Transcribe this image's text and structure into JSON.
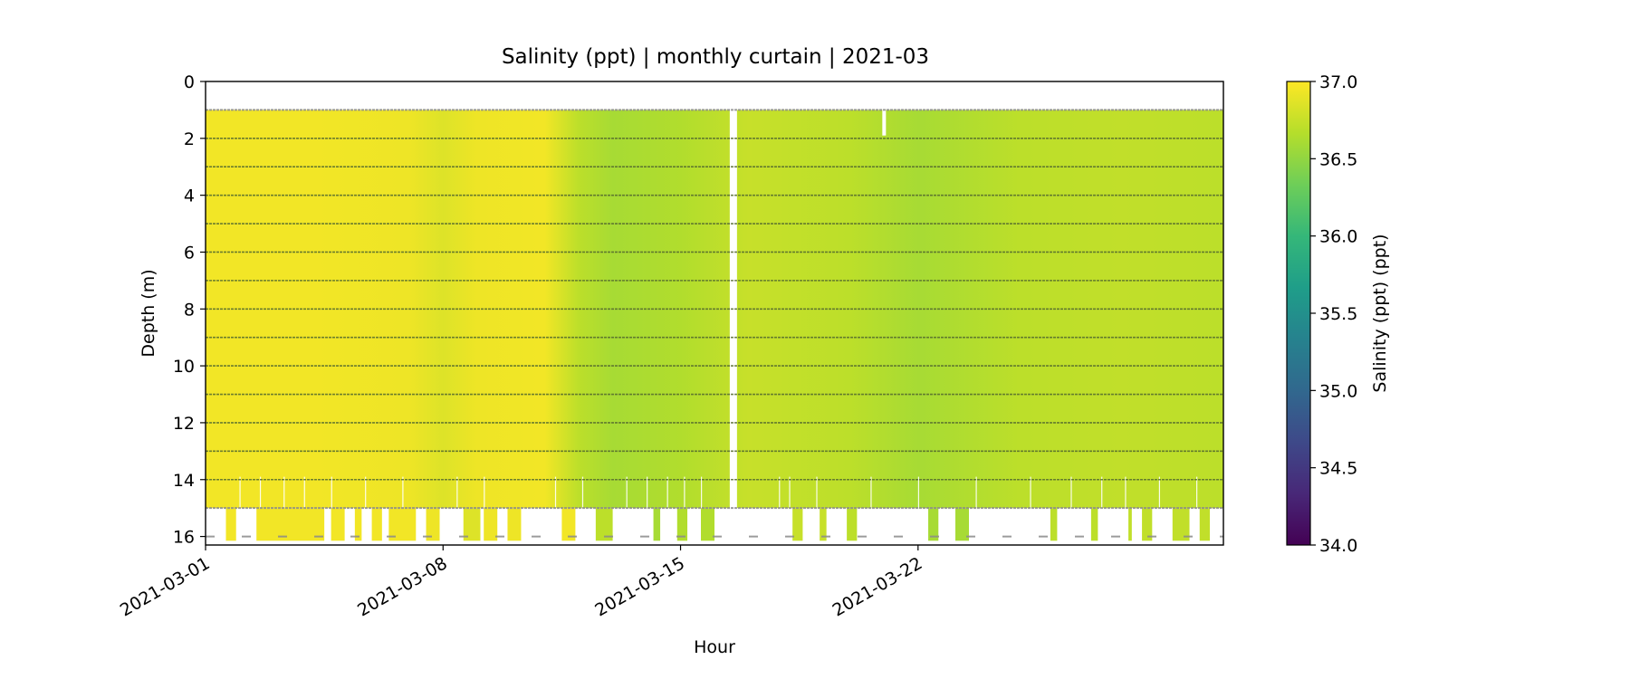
{
  "chart_data": {
    "type": "heatmap",
    "title": "Salinity (ppt) | monthly curtain | 2021-03",
    "xlabel": "Hour",
    "ylabel": "Depth (m)",
    "colorbar_label": "Salinity (ppt) (ppt)",
    "colormap": "viridis",
    "colormap_stops": [
      "#440154",
      "#482878",
      "#3e4989",
      "#31688e",
      "#26828e",
      "#1f9e89",
      "#35b779",
      "#6ece58",
      "#b5de2b",
      "#fde725"
    ],
    "x_range": [
      "2021-03-01",
      "2021-03-31"
    ],
    "x_ticks": [
      "2021-03-01",
      "2021-03-08",
      "2021-03-15",
      "2021-03-22"
    ],
    "y_range": [
      0,
      16.3
    ],
    "y_inverted": true,
    "y_ticks": [
      "0",
      "2",
      "4",
      "6",
      "8",
      "10",
      "12",
      "14",
      "16"
    ],
    "colorbar_range": [
      34.0,
      37.0
    ],
    "colorbar_ticks": [
      "34.0",
      "34.5",
      "35.0",
      "35.5",
      "36.0",
      "36.5",
      "37.0"
    ],
    "sensor_depths": [
      1,
      2,
      3,
      4,
      5,
      6,
      7,
      8,
      9,
      10,
      11,
      12,
      13,
      14,
      15,
      16
    ],
    "data_gap": [
      "2021-03-16",
      "2021-03-16"
    ],
    "salinity_by_day": [
      {
        "date": "2021-03-01",
        "salinity": 36.95
      },
      {
        "date": "2021-03-04",
        "salinity": 36.95
      },
      {
        "date": "2021-03-07",
        "salinity": 36.93
      },
      {
        "date": "2021-03-08",
        "salinity": 36.85
      },
      {
        "date": "2021-03-09",
        "salinity": 36.93
      },
      {
        "date": "2021-03-11",
        "salinity": 36.95
      },
      {
        "date": "2021-03-12",
        "salinity": 36.7
      },
      {
        "date": "2021-03-13",
        "salinity": 36.6
      },
      {
        "date": "2021-03-15",
        "salinity": 36.65
      },
      {
        "date": "2021-03-17",
        "salinity": 36.75
      },
      {
        "date": "2021-03-20",
        "salinity": 36.7
      },
      {
        "date": "2021-03-22",
        "salinity": 36.6
      },
      {
        "date": "2021-03-25",
        "salinity": 36.7
      },
      {
        "date": "2021-03-28",
        "salinity": 36.72
      },
      {
        "date": "2021-03-31",
        "salinity": 36.7
      }
    ],
    "grid": false,
    "legend": "colorbar-right"
  }
}
